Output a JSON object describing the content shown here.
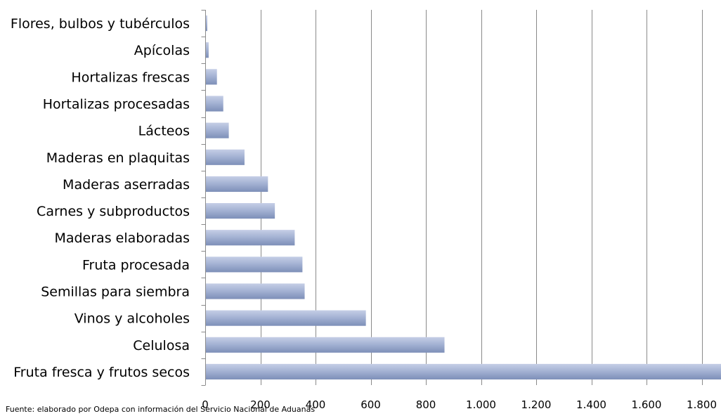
{
  "chart_data": {
    "type": "bar",
    "orientation": "horizontal",
    "categories": [
      "Flores, bulbos y tubérculos",
      "Apícolas",
      "Hortalizas frescas",
      "Hortalizas procesadas",
      "Lácteos",
      "Maderas en plaquitas",
      "Maderas aserradas",
      "Carnes y subproductos",
      "Maderas  elaboradas",
      "Fruta procesada",
      "Semillas para siembra",
      "Vinos y alcoholes",
      "Celulosa",
      "Fruta fresca y frutos secos"
    ],
    "values": [
      5,
      10,
      40,
      63,
      83,
      140,
      225,
      250,
      322,
      350,
      358,
      580,
      865,
      1870
    ],
    "x_ticks": [
      0,
      200,
      400,
      600,
      800,
      1000,
      1200,
      1400,
      1600,
      1800
    ],
    "x_tick_labels": [
      "0",
      "200",
      "400",
      "600",
      "800",
      "1.000",
      "1.200",
      "1.400",
      "1.600",
      "1.800"
    ],
    "xlim": [
      0,
      1870
    ],
    "grid": true,
    "bar_color": "#a5b3d4",
    "bar_color_light": "#c5cee6",
    "bar_color_dark": "#7d8fb8",
    "title": "",
    "xlabel": "",
    "ylabel": "",
    "note": "Fuente:  elaborado por  Odepa con información del Servicio Nacional de Aduanas"
  }
}
